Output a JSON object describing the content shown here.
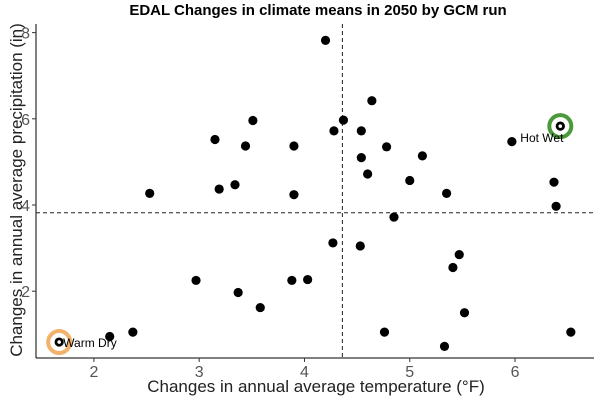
{
  "chart_data": {
    "type": "scatter",
    "title": "EDAL Changes in climate means in 2050 by GCM run",
    "xlabel": "Changes in annual average temperature (°F)",
    "ylabel": "Changes in annual average precipitation (in)",
    "xlim": [
      1.45,
      6.75
    ],
    "ylim": [
      0.45,
      8.2
    ],
    "x_ticks": [
      2,
      3,
      4,
      5,
      6
    ],
    "y_ticks": [
      2,
      4,
      6,
      8
    ],
    "tick_labels_x": [
      "2",
      "3",
      "4",
      "5",
      "6"
    ],
    "tick_labels_y": [
      "2",
      "4",
      "6",
      "8"
    ],
    "grid": false,
    "reference_lines": {
      "x": 4.36,
      "y": 3.82
    },
    "points": [
      {
        "x": 4.2,
        "y": 7.82
      },
      {
        "x": 4.64,
        "y": 6.42
      },
      {
        "x": 3.51,
        "y": 5.96
      },
      {
        "x": 4.37,
        "y": 5.97
      },
      {
        "x": 4.28,
        "y": 5.72
      },
      {
        "x": 4.54,
        "y": 5.72
      },
      {
        "x": 3.15,
        "y": 5.52
      },
      {
        "x": 3.44,
        "y": 5.37
      },
      {
        "x": 3.9,
        "y": 5.37
      },
      {
        "x": 4.78,
        "y": 5.35
      },
      {
        "x": 5.97,
        "y": 5.47
      },
      {
        "x": 5.12,
        "y": 5.14
      },
      {
        "x": 4.54,
        "y": 5.1
      },
      {
        "x": 4.6,
        "y": 4.72
      },
      {
        "x": 5.0,
        "y": 4.57
      },
      {
        "x": 6.37,
        "y": 4.53
      },
      {
        "x": 3.34,
        "y": 4.47
      },
      {
        "x": 3.19,
        "y": 4.37
      },
      {
        "x": 2.53,
        "y": 4.27
      },
      {
        "x": 3.9,
        "y": 4.24
      },
      {
        "x": 5.35,
        "y": 4.27
      },
      {
        "x": 6.39,
        "y": 3.97
      },
      {
        "x": 4.85,
        "y": 3.72
      },
      {
        "x": 4.27,
        "y": 3.12
      },
      {
        "x": 4.53,
        "y": 3.05
      },
      {
        "x": 5.47,
        "y": 2.85
      },
      {
        "x": 5.41,
        "y": 2.55
      },
      {
        "x": 2.97,
        "y": 2.25
      },
      {
        "x": 3.88,
        "y": 2.25
      },
      {
        "x": 4.03,
        "y": 2.27
      },
      {
        "x": 3.37,
        "y": 1.97
      },
      {
        "x": 3.58,
        "y": 1.62
      },
      {
        "x": 5.52,
        "y": 1.5
      },
      {
        "x": 2.15,
        "y": 0.95
      },
      {
        "x": 2.37,
        "y": 1.05
      },
      {
        "x": 4.76,
        "y": 1.05
      },
      {
        "x": 6.53,
        "y": 1.05
      },
      {
        "x": 5.33,
        "y": 0.72
      },
      {
        "x": 1.67,
        "y": 0.82
      },
      {
        "x": 6.43,
        "y": 5.83
      }
    ],
    "highlights": [
      {
        "label": "Warm Dry",
        "x": 1.67,
        "y": 0.82,
        "ring_color": "#f2b26b"
      },
      {
        "label": "Hot Wet",
        "x": 6.43,
        "y": 5.83,
        "ring_color": "#4a9a3b"
      }
    ]
  }
}
